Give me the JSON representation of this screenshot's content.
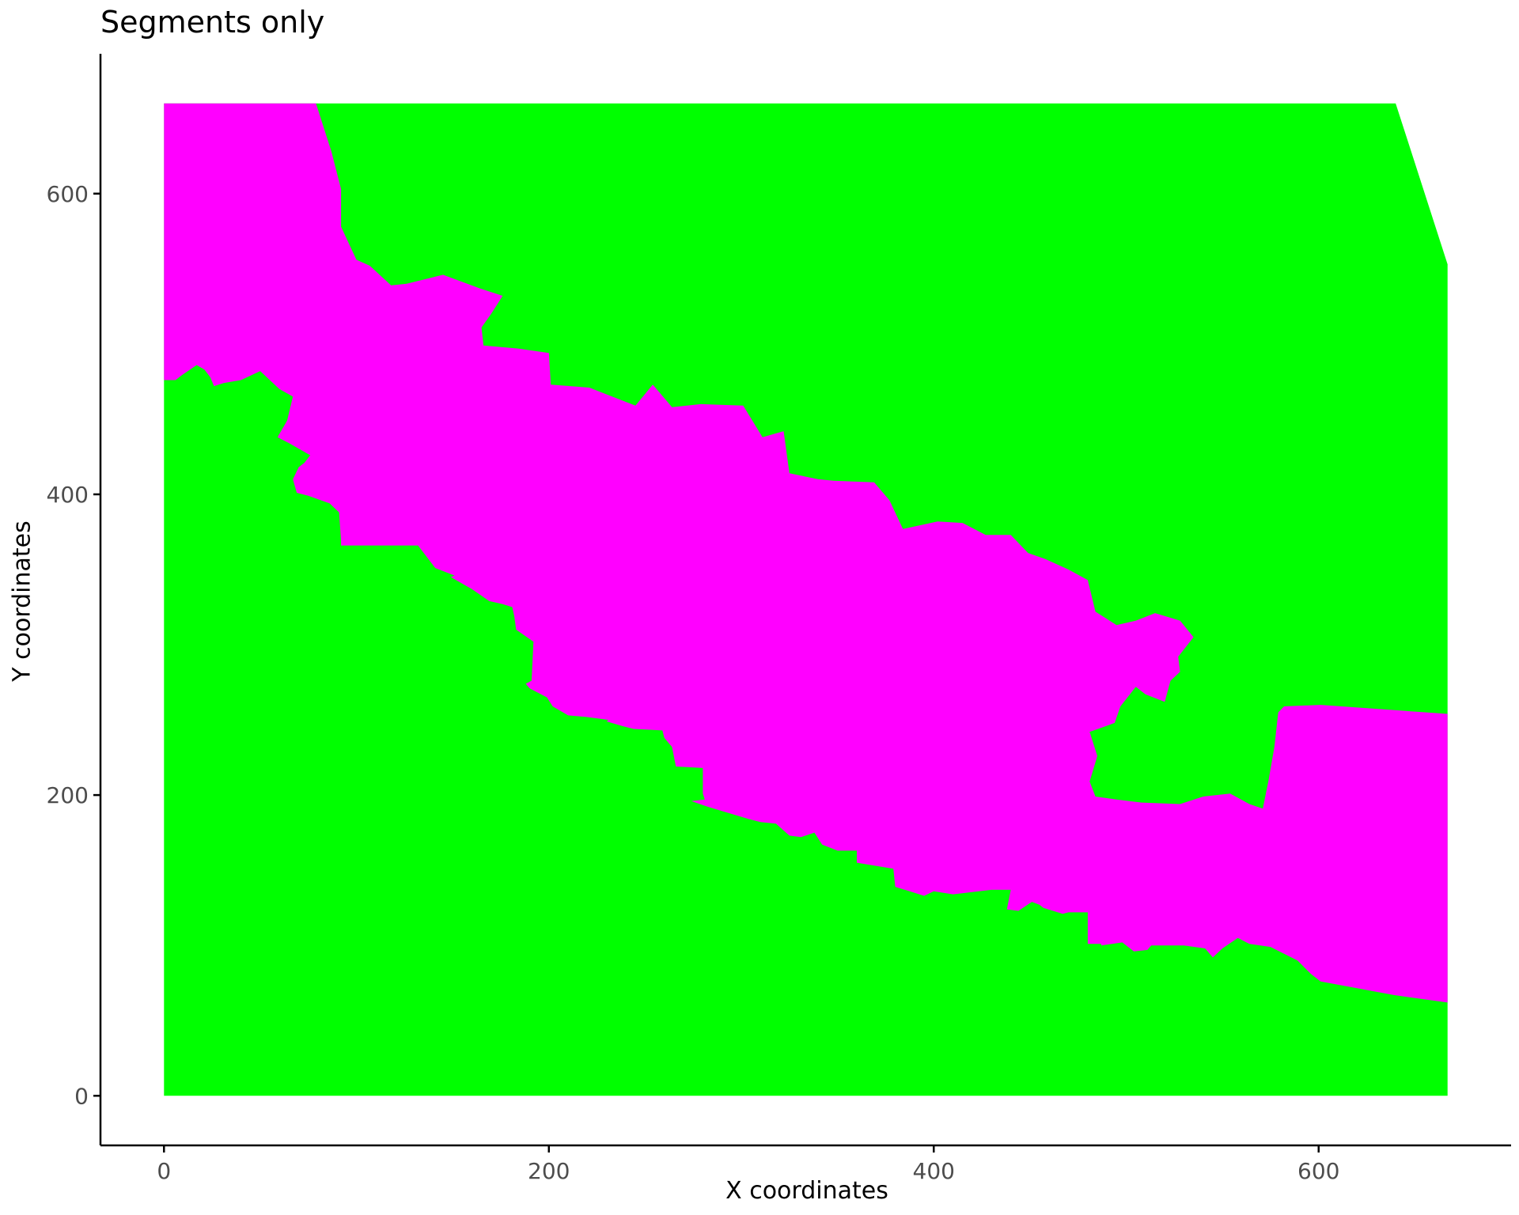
{
  "chart_data": {
    "type": "heatmap",
    "title": "Segments only",
    "xlabel": "X coordinates",
    "ylabel": "Y coordinates",
    "xlim": [
      -33,
      700
    ],
    "ylim": [
      -33,
      693
    ],
    "x_ticks": [
      0,
      200,
      400,
      600
    ],
    "y_ticks": [
      0,
      200,
      400,
      600
    ],
    "x_tick_labels": [
      "0",
      "200",
      "400",
      "600"
    ],
    "y_tick_labels": [
      "0",
      "200",
      "400",
      "600"
    ],
    "grid": false,
    "colors": {
      "background_segment": "#00FF00",
      "foreground_segment": "#FF00FF",
      "axis": "#000000",
      "tick_label": "#4D4D4D"
    },
    "segments": [
      {
        "color": "#00FF00",
        "polygon": [
          [
            0,
            0
          ],
          [
            667,
            0
          ],
          [
            667,
            553
          ],
          [
            640,
            660
          ],
          [
            0,
            660
          ]
        ]
      },
      {
        "color": "#FF00FF",
        "polygon": [
          [
            0,
            660
          ],
          [
            79,
            660
          ],
          [
            87,
            628
          ],
          [
            92,
            603
          ],
          [
            92,
            578
          ],
          [
            100,
            556
          ],
          [
            107,
            552
          ],
          [
            118,
            539
          ],
          [
            126,
            540
          ],
          [
            145,
            546
          ],
          [
            164,
            537
          ],
          [
            176,
            532
          ],
          [
            170,
            520
          ],
          [
            165,
            511
          ],
          [
            166,
            499
          ],
          [
            184,
            497
          ],
          [
            200,
            494
          ],
          [
            201,
            473
          ],
          [
            221,
            471
          ],
          [
            245,
            459
          ],
          [
            254,
            473
          ],
          [
            264,
            458
          ],
          [
            279,
            460
          ],
          [
            301,
            459
          ],
          [
            311,
            438
          ],
          [
            322,
            442
          ],
          [
            325,
            414
          ],
          [
            340,
            410
          ],
          [
            348,
            409
          ],
          [
            369,
            408
          ],
          [
            377,
            396
          ],
          [
            384,
            377
          ],
          [
            402,
            382
          ],
          [
            415,
            381
          ],
          [
            427,
            373
          ],
          [
            440,
            373
          ],
          [
            449,
            361
          ],
          [
            458,
            357
          ],
          [
            470,
            350
          ],
          [
            480,
            343
          ],
          [
            484,
            322
          ],
          [
            495,
            313
          ],
          [
            505,
            316
          ],
          [
            515,
            321
          ],
          [
            528,
            316
          ],
          [
            535,
            305
          ],
          [
            527,
            292
          ],
          [
            528,
            282
          ],
          [
            523,
            276
          ],
          [
            520,
            262
          ],
          [
            510,
            267
          ],
          [
            505,
            272
          ],
          [
            497,
            259
          ],
          [
            494,
            248
          ],
          [
            481,
            242
          ],
          [
            485,
            226
          ],
          [
            481,
            209
          ],
          [
            484,
            199
          ],
          [
            495,
            197
          ],
          [
            508,
            195
          ],
          [
            528,
            194
          ],
          [
            540,
            199
          ],
          [
            554,
            201
          ],
          [
            564,
            194
          ],
          [
            571,
            191
          ],
          [
            574,
            210
          ],
          [
            577,
            232
          ],
          [
            579,
            255
          ],
          [
            582,
            259
          ],
          [
            601,
            260
          ],
          [
            667,
            254
          ],
          [
            667,
            62
          ],
          [
            639,
            67
          ],
          [
            601,
            76
          ],
          [
            596,
            81
          ],
          [
            589,
            90
          ],
          [
            575,
            99
          ],
          [
            564,
            101
          ],
          [
            558,
            105
          ],
          [
            550,
            98
          ],
          [
            545,
            92
          ],
          [
            541,
            98
          ],
          [
            530,
            100
          ],
          [
            513,
            100
          ],
          [
            511,
            97
          ],
          [
            504,
            96
          ],
          [
            498,
            102
          ],
          [
            487,
            100
          ],
          [
            487,
            101
          ],
          [
            480,
            101
          ],
          [
            480,
            122
          ],
          [
            470,
            122
          ],
          [
            467,
            121
          ],
          [
            457,
            125
          ],
          [
            455,
            127
          ],
          [
            451,
            129
          ],
          [
            444,
            123
          ],
          [
            438,
            124
          ],
          [
            440,
            137
          ],
          [
            430,
            137
          ],
          [
            410,
            134
          ],
          [
            400,
            136
          ],
          [
            395,
            133
          ],
          [
            380,
            139
          ],
          [
            379,
            151
          ],
          [
            360,
            155
          ],
          [
            360,
            163
          ],
          [
            350,
            163
          ],
          [
            342,
            167
          ],
          [
            338,
            175
          ],
          [
            331,
            172
          ],
          [
            325,
            173
          ],
          [
            318,
            181
          ],
          [
            310,
            182
          ],
          [
            304,
            184
          ],
          [
            283,
            192
          ],
          [
            274,
            196
          ],
          [
            281,
            197
          ],
          [
            280,
            201
          ],
          [
            280,
            218
          ],
          [
            266,
            219
          ],
          [
            264,
            232
          ],
          [
            260,
            238
          ],
          [
            259,
            243
          ],
          [
            244,
            244
          ],
          [
            238,
            246
          ],
          [
            230,
            249
          ],
          [
            231,
            250
          ],
          [
            219,
            252
          ],
          [
            210,
            253
          ],
          [
            202,
            259
          ],
          [
            199,
            265
          ],
          [
            193,
            269
          ],
          [
            190,
            271
          ],
          [
            188,
            274
          ],
          [
            191,
            276
          ],
          [
            192,
            302
          ],
          [
            183,
            310
          ],
          [
            182,
            319
          ],
          [
            181,
            325
          ],
          [
            176,
            327
          ],
          [
            169,
            329
          ],
          [
            160,
            337
          ],
          [
            149,
            345
          ],
          [
            151,
            346
          ],
          [
            141,
            351
          ],
          [
            132,
            366
          ],
          [
            128,
            366
          ],
          [
            106,
            366
          ],
          [
            92,
            366
          ],
          [
            92,
            369
          ],
          [
            91,
            388
          ],
          [
            86,
            394
          ],
          [
            75,
            399
          ],
          [
            69,
            401
          ],
          [
            67,
            410
          ],
          [
            70,
            418
          ],
          [
            73,
            421
          ],
          [
            76,
            426
          ],
          [
            65,
            434
          ],
          [
            59,
            438
          ],
          [
            64,
            449
          ],
          [
            67,
            465
          ],
          [
            60,
            470
          ],
          [
            50,
            482
          ],
          [
            40,
            476
          ],
          [
            31,
            474
          ],
          [
            26,
            472
          ],
          [
            24,
            478
          ],
          [
            21,
            483
          ],
          [
            17,
            486
          ],
          [
            9,
            479
          ],
          [
            6,
            476
          ],
          [
            0,
            476
          ]
        ]
      }
    ]
  }
}
